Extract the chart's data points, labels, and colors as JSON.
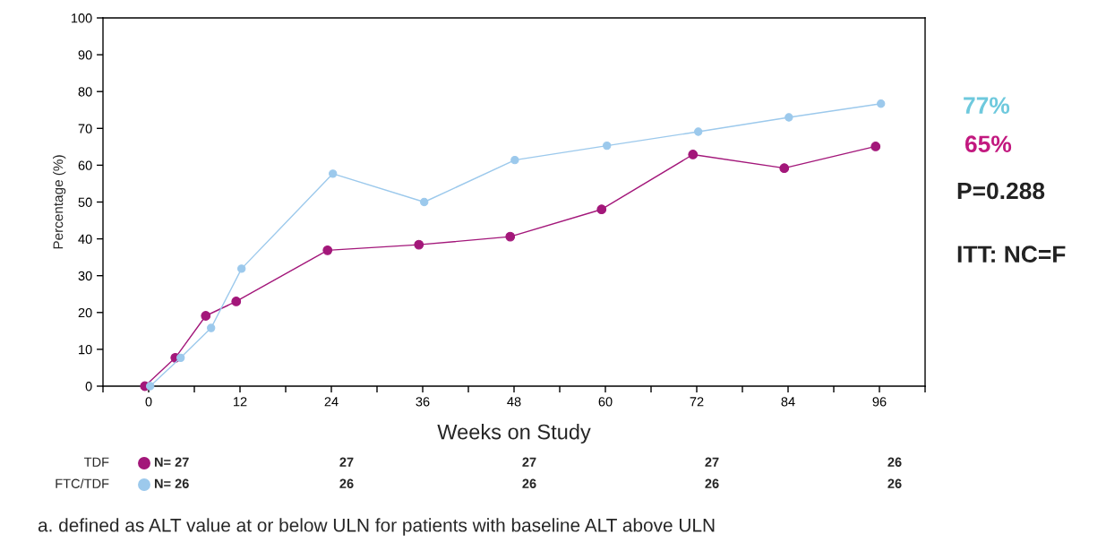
{
  "chart_data": {
    "type": "line",
    "xlabel": "Weeks on Study",
    "ylabel": "Percentage (%)",
    "x": [
      -0.5,
      3.5,
      7.5,
      11.5,
      23.5,
      35.5,
      47.5,
      59.5,
      71.5,
      83.5,
      95.5
    ],
    "series": [
      {
        "name": "TDF",
        "color": "#a3177a",
        "values": [
          0,
          7.7,
          19.1,
          23,
          36.9,
          38.4,
          40.6,
          48,
          62.9,
          59.2,
          65.1
        ]
      },
      {
        "name": "FTC/TDF",
        "color": "#9cc9ec",
        "x": [
          0.2,
          4.2,
          8.2,
          12.2,
          24.2,
          36.2,
          48.1,
          60.2,
          72.2,
          84.1,
          96.2
        ],
        "values": [
          0,
          7.7,
          15.8,
          31.9,
          57.7,
          50,
          61.4,
          65.3,
          69.1,
          73,
          76.7
        ]
      }
    ],
    "xlim": [
      -6,
      102
    ],
    "xticks": [
      {
        "value": -6,
        "label": null
      },
      0,
      {
        "value": 6,
        "label": null
      },
      12,
      {
        "value": 18,
        "label": null
      },
      24,
      {
        "value": 30,
        "label": null
      },
      36,
      {
        "value": 42,
        "label": null
      },
      48,
      {
        "value": 54,
        "label": null
      },
      60,
      {
        "value": 66,
        "label": null
      },
      72,
      {
        "value": 78,
        "label": null
      },
      84,
      {
        "value": 90,
        "label": null
      },
      96,
      {
        "value": 102,
        "label": null
      }
    ],
    "ylim": [
      0,
      100
    ],
    "yticks": [
      0,
      10,
      20,
      30,
      40,
      50,
      60,
      70,
      80,
      90,
      100
    ],
    "marker": "circle",
    "line_style": "solid",
    "grid": false,
    "legend": "bottom",
    "annotations": [
      "77%",
      "65%",
      "P=0.288",
      "ITT: NC=F",
      "N= 27",
      "27",
      "27",
      "27",
      "26",
      "N= 26",
      "26",
      "26",
      "26",
      "26",
      "a. defined as ALT value at or below ULN for patients with baseline ALT above ULN"
    ]
  }
}
